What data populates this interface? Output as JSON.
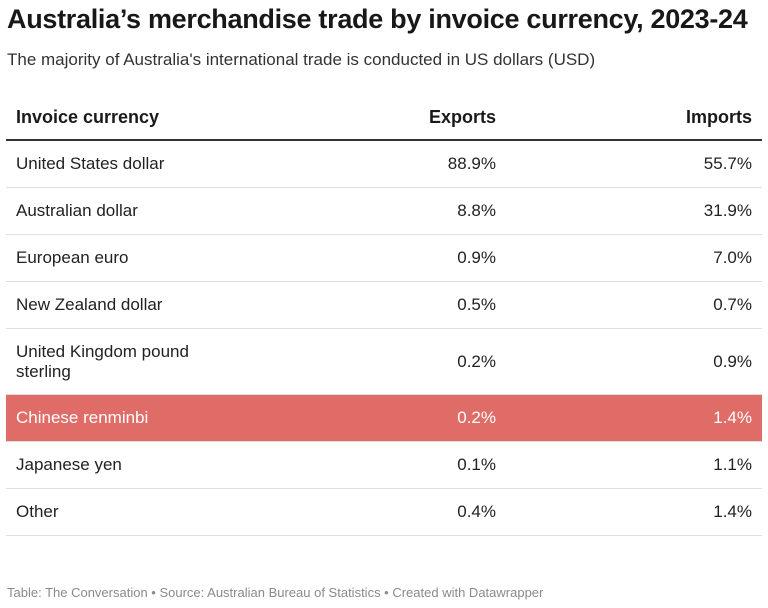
{
  "title": "Australia’s merchandise trade by invoice currency, 2023-24",
  "subtitle": "The majority of Australia's international trade is conducted in US dollars (USD)",
  "footer": "Table: The Conversation • Source: Australian Bureau of Statistics • Created with Datawrapper",
  "colors": {
    "highlight_row": "#e06c67",
    "highlight_text": "#ffffff"
  },
  "chart_data": {
    "type": "table",
    "title": "Australia’s merchandise trade by invoice currency, 2023-24",
    "subtitle": "The majority of Australia's international trade is conducted in US dollars (USD)",
    "columns": [
      "Invoice currency",
      "Exports",
      "Imports"
    ],
    "rows": [
      {
        "currency": "United States dollar",
        "exports": "88.9%",
        "imports": "55.7%"
      },
      {
        "currency": "Australian dollar",
        "exports": "8.8%",
        "imports": "31.9%"
      },
      {
        "currency": "European euro",
        "exports": "0.9%",
        "imports": "7.0%"
      },
      {
        "currency": "New Zealand dollar",
        "exports": "0.5%",
        "imports": "0.7%"
      },
      {
        "currency": "United Kingdom pound sterling",
        "exports": "0.2%",
        "imports": "0.9%"
      },
      {
        "currency": "Chinese renminbi",
        "exports": "0.2%",
        "imports": "1.4%"
      },
      {
        "currency": "Japanese yen",
        "exports": "0.1%",
        "imports": "1.1%"
      },
      {
        "currency": "Other",
        "exports": "0.4%",
        "imports": "1.4%"
      }
    ],
    "highlighted_row": "Chinese renminbi"
  }
}
